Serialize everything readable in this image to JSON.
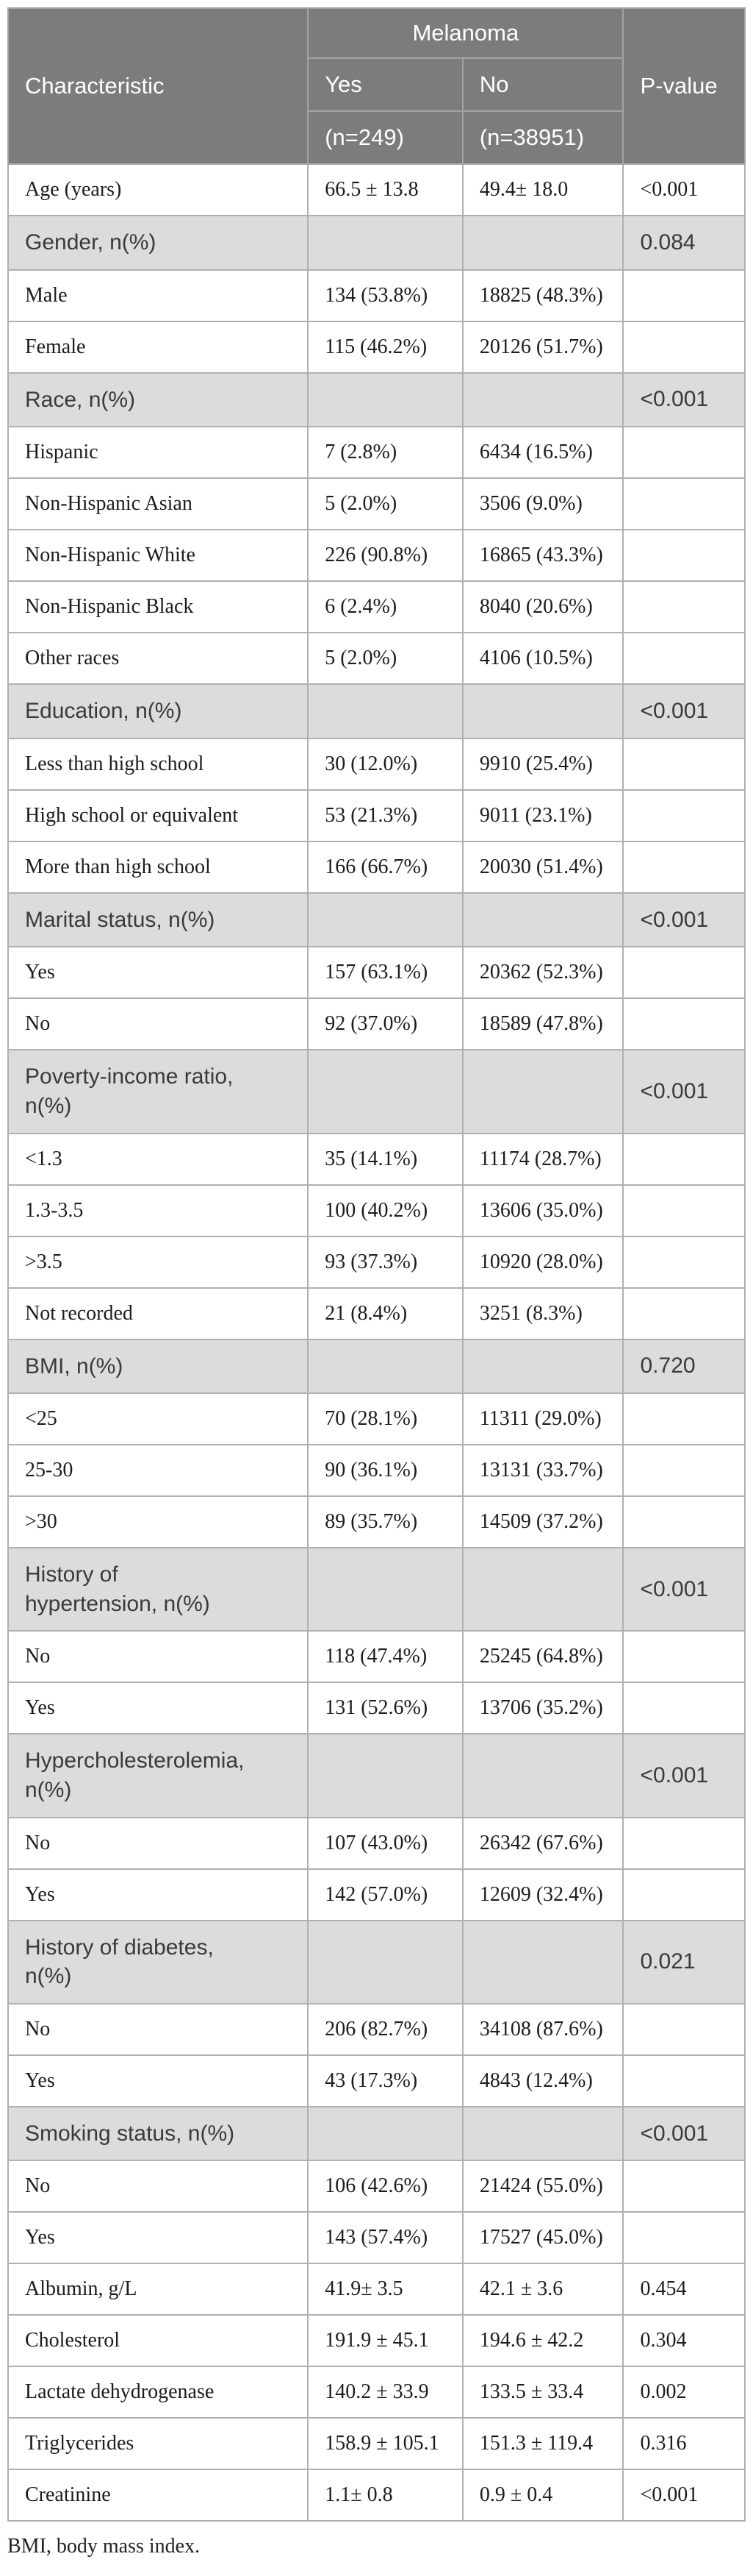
{
  "table": {
    "header": {
      "characteristic": "Characteristic",
      "group": "Melanoma",
      "col_yes": "Yes",
      "col_no": "No",
      "n_yes": "(n=249)",
      "n_no": "(n=38951)",
      "p_value": "P-value"
    },
    "rows": [
      {
        "type": "data",
        "label": "Age (years)",
        "yes": "66.5 ± 13.8",
        "no": "49.4± 18.0",
        "p": "<0.001"
      },
      {
        "type": "section",
        "label": "Gender, n(%)",
        "p": "0.084"
      },
      {
        "type": "data",
        "label": "Male",
        "yes": "134 (53.8%)",
        "no": "18825 (48.3%)"
      },
      {
        "type": "data",
        "label": "Female",
        "yes": "115 (46.2%)",
        "no": "20126 (51.7%)"
      },
      {
        "type": "section",
        "label": "Race, n(%)",
        "p": "<0.001"
      },
      {
        "type": "data",
        "label": "Hispanic",
        "yes": "7 (2.8%)",
        "no": "6434 (16.5%)"
      },
      {
        "type": "data",
        "label": "Non-Hispanic Asian",
        "yes": "5 (2.0%)",
        "no": "3506 (9.0%)"
      },
      {
        "type": "data",
        "label": "Non-Hispanic White",
        "yes": "226 (90.8%)",
        "no": "16865 (43.3%)"
      },
      {
        "type": "data",
        "label": "Non-Hispanic Black",
        "yes": "6 (2.4%)",
        "no": "8040 (20.6%)"
      },
      {
        "type": "data",
        "label": "Other races",
        "yes": "5 (2.0%)",
        "no": "4106 (10.5%)"
      },
      {
        "type": "section",
        "label": "Education, n(%)",
        "p": "<0.001"
      },
      {
        "type": "data",
        "label": "Less than high school",
        "yes": "30 (12.0%)",
        "no": "9910 (25.4%)"
      },
      {
        "type": "data",
        "label": "High school or equivalent",
        "yes": "53 (21.3%)",
        "no": "9011 (23.1%)"
      },
      {
        "type": "data",
        "label": "More than high school",
        "yes": "166 (66.7%)",
        "no": "20030 (51.4%)"
      },
      {
        "type": "section",
        "label": "Marital status, n(%)",
        "p": "<0.001"
      },
      {
        "type": "data",
        "label": "Yes",
        "yes": "157 (63.1%)",
        "no": "20362 (52.3%)"
      },
      {
        "type": "data",
        "label": "No",
        "yes": "92 (37.0%)",
        "no": "18589 (47.8%)"
      },
      {
        "type": "section",
        "label": "Poverty-income ratio,\nn(%)",
        "p": "<0.001"
      },
      {
        "type": "data",
        "label": "<1.3",
        "yes": "35 (14.1%)",
        "no": "11174 (28.7%)"
      },
      {
        "type": "data",
        "label": "1.3-3.5",
        "yes": "100 (40.2%)",
        "no": "13606 (35.0%)"
      },
      {
        "type": "data",
        "label": ">3.5",
        "yes": "93 (37.3%)",
        "no": "10920 (28.0%)"
      },
      {
        "type": "data",
        "label": "Not recorded",
        "yes": "21 (8.4%)",
        "no": "3251 (8.3%)"
      },
      {
        "type": "section",
        "label": "BMI, n(%)",
        "p": "0.720"
      },
      {
        "type": "data",
        "label": "<25",
        "yes": "70 (28.1%)",
        "no": "11311 (29.0%)"
      },
      {
        "type": "data",
        "label": "25-30",
        "yes": "90 (36.1%)",
        "no": "13131 (33.7%)"
      },
      {
        "type": "data",
        "label": ">30",
        "yes": "89 (35.7%)",
        "no": "14509 (37.2%)"
      },
      {
        "type": "section",
        "label": "History of\nhypertension, n(%)",
        "p": "<0.001"
      },
      {
        "type": "data",
        "label": "No",
        "yes": "118 (47.4%)",
        "no": "25245 (64.8%)"
      },
      {
        "type": "data",
        "label": "Yes",
        "yes": "131 (52.6%)",
        "no": "13706 (35.2%)"
      },
      {
        "type": "section",
        "label": "Hypercholesterolemia,\nn(%)",
        "p": "<0.001"
      },
      {
        "type": "data",
        "label": "No",
        "yes": "107 (43.0%)",
        "no": "26342 (67.6%)"
      },
      {
        "type": "data",
        "label": "Yes",
        "yes": "142 (57.0%)",
        "no": "12609 (32.4%)"
      },
      {
        "type": "section",
        "label": "History of diabetes,\nn(%)",
        "p": "0.021"
      },
      {
        "type": "data",
        "label": "No",
        "yes": "206 (82.7%)",
        "no": "34108 (87.6%)"
      },
      {
        "type": "data",
        "label": "Yes",
        "yes": "43 (17.3%)",
        "no": "4843 (12.4%)"
      },
      {
        "type": "section",
        "label": "Smoking status, n(%)",
        "p": "<0.001"
      },
      {
        "type": "data",
        "label": "No",
        "yes": "106 (42.6%)",
        "no": "21424 (55.0%)"
      },
      {
        "type": "data",
        "label": "Yes",
        "yes": "143 (57.4%)",
        "no": "17527 (45.0%)"
      },
      {
        "type": "data",
        "label": "Albumin, g/L",
        "yes": "41.9± 3.5",
        "no": "42.1 ± 3.6",
        "p": "0.454"
      },
      {
        "type": "data",
        "label": "Cholesterol",
        "yes": "191.9 ± 45.1",
        "no": "194.6 ± 42.2",
        "p": "0.304"
      },
      {
        "type": "data",
        "label": "Lactate dehydrogenase",
        "yes": "140.2 ± 33.9",
        "no": "133.5 ± 33.4",
        "p": "0.002"
      },
      {
        "type": "data",
        "label": "Triglycerides",
        "yes": "158.9 ± 105.1",
        "no": "151.3 ± 119.4",
        "p": "0.316"
      },
      {
        "type": "data",
        "label": "Creatinine",
        "yes": "1.1± 0.8",
        "no": "0.9 ± 0.4",
        "p": "<0.001"
      }
    ],
    "footnote": "BMI, body mass index.",
    "colors": {
      "header_bg": "#7c7c7c",
      "header_text": "#ffffff",
      "section_bg": "#dcdcdc",
      "border": "#b0b0b0",
      "header_border": "#a3a3a3",
      "body_text": "#1c1c1c",
      "section_text": "#3a3a3a"
    }
  }
}
